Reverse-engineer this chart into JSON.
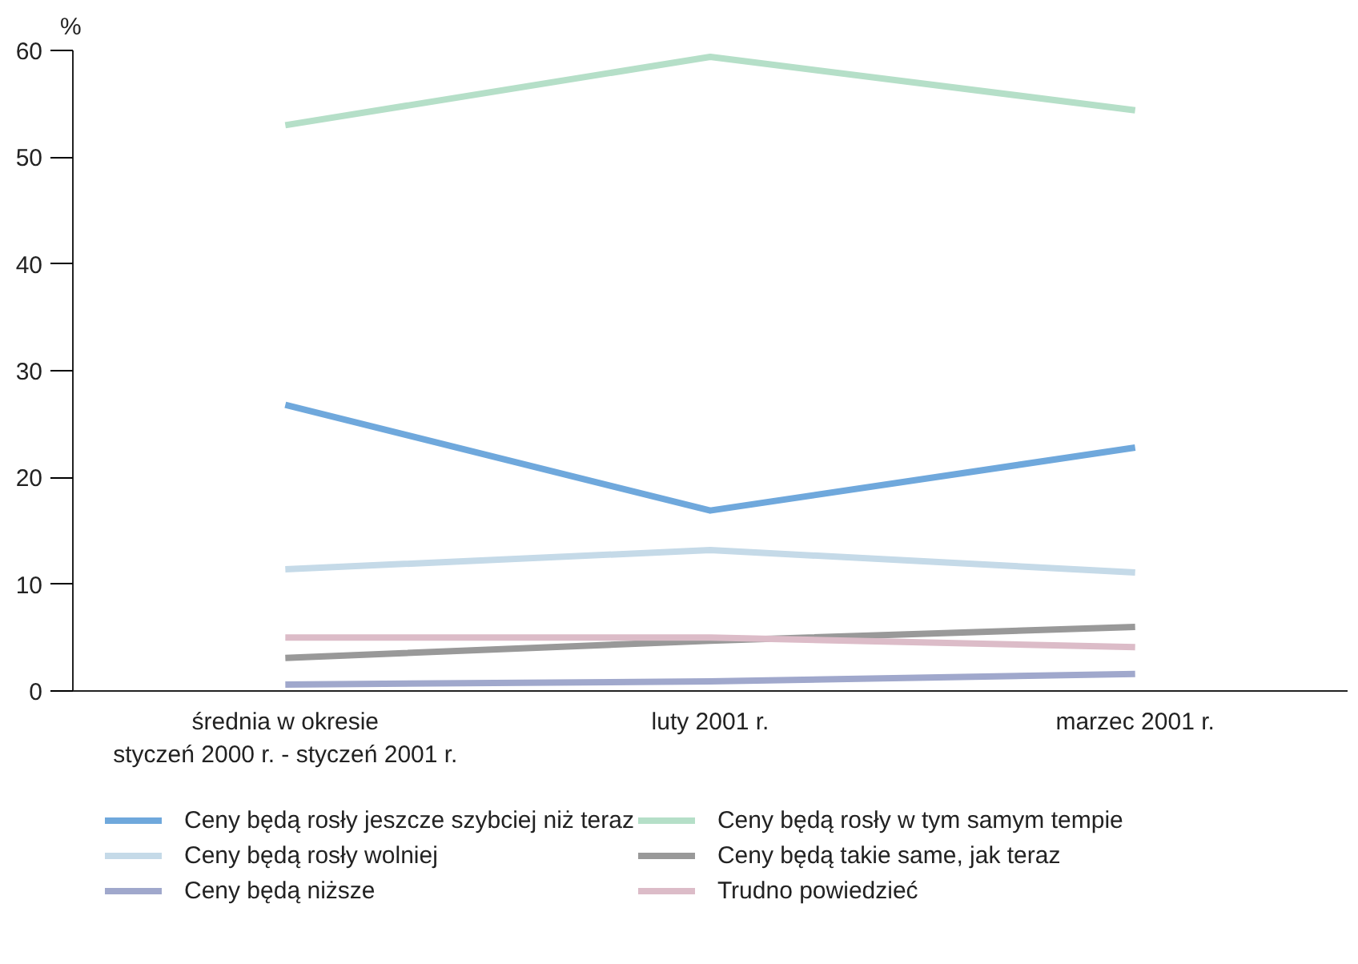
{
  "chart_data": {
    "type": "line",
    "ylabel": "%",
    "categories": [
      "średnia w okresie\nstyczeń 2000 r. - styczeń 2001 r.",
      "luty 2001 r.",
      "marzec 2001 r."
    ],
    "series": [
      {
        "name": "Ceny będą rosły jeszcze szybciej niż teraz",
        "color": "#6fa8dc",
        "values": [
          26.8,
          16.9,
          22.8
        ]
      },
      {
        "name": "Ceny będą rosły wolniej",
        "color": "#c5dae8",
        "values": [
          11.4,
          13.2,
          11.1
        ]
      },
      {
        "name": "Ceny będą niższe",
        "color": "#a0a8cc",
        "values": [
          0.6,
          0.9,
          1.6
        ]
      },
      {
        "name": "Ceny będą rosły w tym samym tempie",
        "color": "#b5dfc8",
        "values": [
          53.0,
          59.4,
          54.4
        ]
      },
      {
        "name": "Ceny będą takie same, jak teraz",
        "color": "#999999",
        "values": [
          3.1,
          4.7,
          6.0
        ]
      },
      {
        "name": "Trudno powiedzieć",
        "color": "#dcbcc8",
        "values": [
          5.0,
          5.0,
          4.1
        ]
      }
    ],
    "ylim": [
      0,
      60
    ],
    "yticks": [
      0,
      10,
      20,
      30,
      40,
      50,
      60
    ],
    "grid": false,
    "legend": "bottom",
    "marker": "none",
    "line_style": "solid"
  }
}
